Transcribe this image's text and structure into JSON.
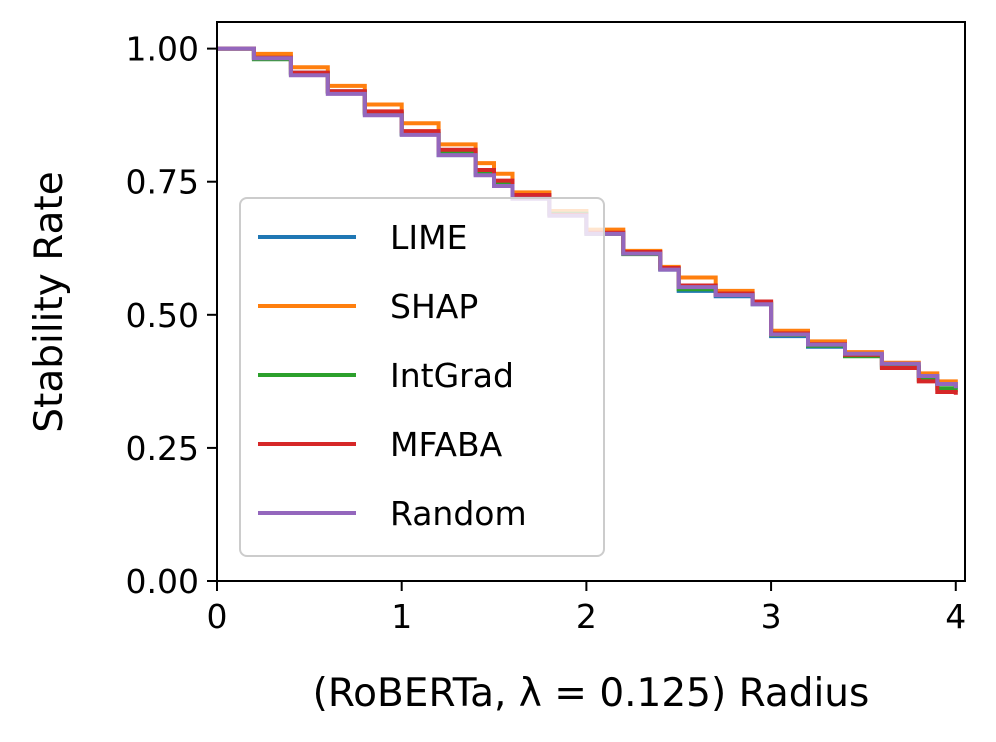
{
  "chart_data": {
    "type": "line",
    "xlabel": "(RoBERTa, λ = 0.125) Radius",
    "ylabel": "Stability Rate",
    "xlim": [
      0,
      4.05
    ],
    "ylim": [
      0,
      1.05
    ],
    "xticks": [
      0,
      1,
      2,
      3,
      4
    ],
    "xtick_labels": [
      "0",
      "1",
      "2",
      "3",
      "4"
    ],
    "yticks": [
      0,
      0.25,
      0.5,
      0.75,
      1.0
    ],
    "ytick_labels": [
      "0.00",
      "0.25",
      "0.50",
      "0.75",
      "1.00"
    ],
    "grid": false,
    "legend_position": "center-left",
    "series": [
      {
        "name": "LIME",
        "color": "#1f77b4",
        "x": [
          0,
          0.2,
          0.4,
          0.6,
          0.8,
          1.0,
          1.2,
          1.4,
          1.5,
          1.6,
          1.8,
          2.0,
          2.2,
          2.4,
          2.5,
          2.7,
          2.9,
          3.0,
          3.2,
          3.4,
          3.6,
          3.8,
          3.9,
          4.0
        ],
        "y": [
          1.0,
          0.985,
          0.955,
          0.92,
          0.88,
          0.84,
          0.8,
          0.765,
          0.745,
          0.72,
          0.69,
          0.655,
          0.615,
          0.585,
          0.545,
          0.535,
          0.52,
          0.46,
          0.44,
          0.425,
          0.405,
          0.385,
          0.37,
          0.36
        ]
      },
      {
        "name": "SHAP",
        "color": "#ff7f0e",
        "x": [
          0,
          0.2,
          0.4,
          0.6,
          0.8,
          1.0,
          1.2,
          1.4,
          1.5,
          1.6,
          1.8,
          2.0,
          2.2,
          2.4,
          2.5,
          2.7,
          2.9,
          3.0,
          3.2,
          3.4,
          3.6,
          3.8,
          3.9,
          4.0
        ],
        "y": [
          1.0,
          0.99,
          0.965,
          0.93,
          0.895,
          0.86,
          0.82,
          0.785,
          0.765,
          0.73,
          0.695,
          0.66,
          0.62,
          0.59,
          0.57,
          0.545,
          0.525,
          0.47,
          0.45,
          0.43,
          0.41,
          0.39,
          0.375,
          0.365
        ]
      },
      {
        "name": "IntGrad",
        "color": "#2ca02c",
        "x": [
          0,
          0.2,
          0.4,
          0.6,
          0.8,
          1.0,
          1.2,
          1.4,
          1.5,
          1.6,
          1.8,
          2.0,
          2.2,
          2.4,
          2.5,
          2.7,
          2.9,
          3.0,
          3.2,
          3.4,
          3.6,
          3.8,
          3.9,
          4.0
        ],
        "y": [
          1.0,
          0.98,
          0.952,
          0.918,
          0.878,
          0.84,
          0.805,
          0.768,
          0.748,
          0.722,
          0.69,
          0.652,
          0.614,
          0.586,
          0.548,
          0.538,
          0.522,
          0.462,
          0.442,
          0.422,
          0.402,
          0.378,
          0.362,
          0.355
        ]
      },
      {
        "name": "MFABA",
        "color": "#d62728",
        "x": [
          0,
          0.2,
          0.4,
          0.6,
          0.8,
          1.0,
          1.2,
          1.4,
          1.5,
          1.6,
          1.8,
          2.0,
          2.2,
          2.4,
          2.5,
          2.7,
          2.9,
          3.0,
          3.2,
          3.4,
          3.6,
          3.8,
          3.9,
          4.0
        ],
        "y": [
          1.0,
          0.983,
          0.955,
          0.92,
          0.882,
          0.845,
          0.81,
          0.772,
          0.752,
          0.725,
          0.688,
          0.654,
          0.618,
          0.588,
          0.555,
          0.54,
          0.525,
          0.465,
          0.445,
          0.425,
          0.4,
          0.375,
          0.355,
          0.35
        ]
      },
      {
        "name": "Random",
        "color": "#9467bd",
        "x": [
          0,
          0.2,
          0.4,
          0.6,
          0.8,
          1.0,
          1.2,
          1.4,
          1.5,
          1.6,
          1.8,
          2.0,
          2.2,
          2.4,
          2.5,
          2.7,
          2.9,
          3.0,
          3.2,
          3.4,
          3.6,
          3.8,
          3.9,
          4.0
        ],
        "y": [
          1.0,
          0.982,
          0.95,
          0.915,
          0.875,
          0.838,
          0.8,
          0.762,
          0.742,
          0.718,
          0.686,
          0.652,
          0.615,
          0.585,
          0.552,
          0.537,
          0.52,
          0.463,
          0.444,
          0.427,
          0.408,
          0.385,
          0.37,
          0.362
        ]
      }
    ]
  }
}
